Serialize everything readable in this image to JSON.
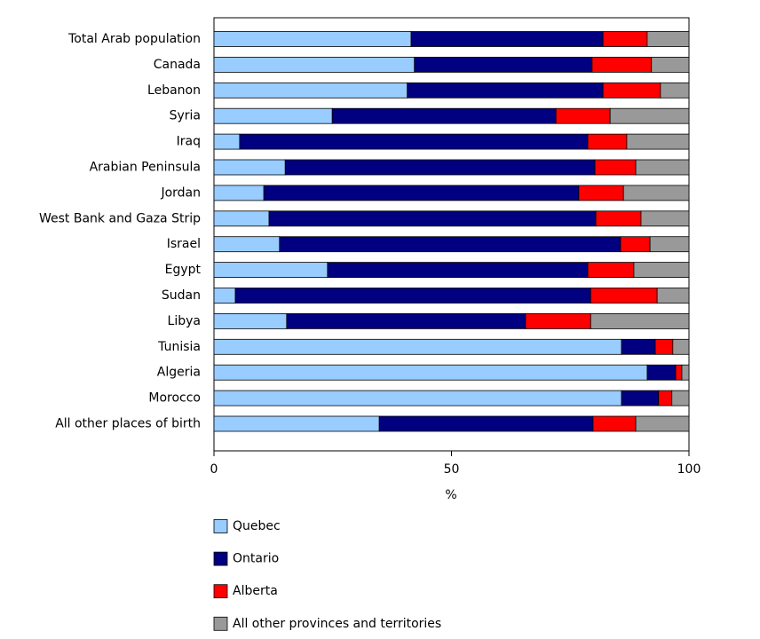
{
  "chart_data": {
    "type": "stacked-barh",
    "x_label": "%",
    "categories": [
      "Total Arab population",
      "Canada",
      "Lebanon",
      "Syria",
      "Iraq",
      "Arabian Peninsula",
      "Jordan",
      "West Bank and Gaza Strip",
      "Israel",
      "Egypt",
      "Sudan",
      "Libya",
      "Tunisia",
      "Algeria",
      "Morocco",
      "All other places of birth"
    ],
    "series": [
      {
        "name": "Quebec",
        "color": "#99ccff",
        "values": [
          41.5,
          42.2,
          40.7,
          24.9,
          5.4,
          15.0,
          10.5,
          11.6,
          13.8,
          23.9,
          4.5,
          15.3,
          85.8,
          91.2,
          85.8,
          34.8
        ]
      },
      {
        "name": "Ontario",
        "color": "#000080",
        "values": [
          40.4,
          37.4,
          41.2,
          47.1,
          73.3,
          65.2,
          66.3,
          68.8,
          71.8,
          54.8,
          74.8,
          50.3,
          7.1,
          6.0,
          7.8,
          45.0
        ]
      },
      {
        "name": "Alberta",
        "color": "#ff0000",
        "values": [
          9.3,
          12.5,
          12.1,
          11.4,
          8.2,
          8.6,
          9.4,
          9.5,
          6.2,
          9.7,
          14.0,
          13.7,
          3.7,
          1.3,
          2.8,
          9.0
        ]
      },
      {
        "name": "All other provinces and territories",
        "color": "#999999",
        "values": [
          8.8,
          7.9,
          6.0,
          16.6,
          13.1,
          11.2,
          13.8,
          10.1,
          8.2,
          11.6,
          6.7,
          20.7,
          3.4,
          1.5,
          3.6,
          11.2
        ]
      }
    ],
    "xlim": [
      0,
      100
    ],
    "xticks": [
      0,
      50,
      100
    ]
  }
}
